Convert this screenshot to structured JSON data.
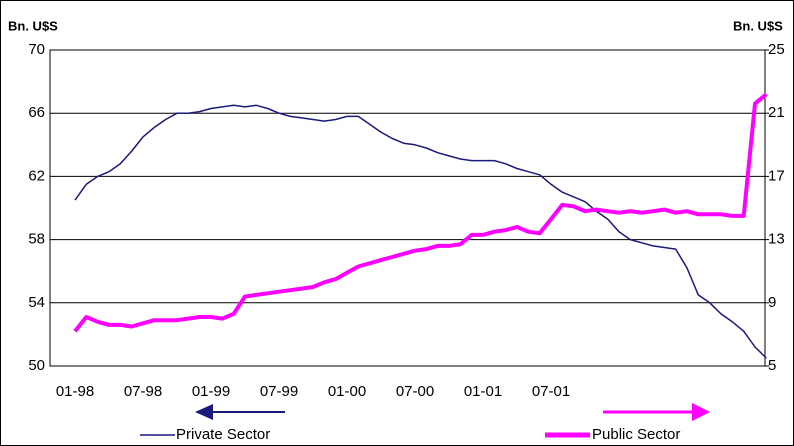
{
  "chart_data": {
    "type": "line",
    "y_label": "Bn. U$S",
    "y2_label": "Bn. U$S",
    "categories": [
      "01-98",
      null,
      null,
      null,
      null,
      null,
      "07-98",
      null,
      null,
      null,
      null,
      null,
      "01-99",
      null,
      null,
      null,
      null,
      null,
      "07-99",
      null,
      null,
      null,
      null,
      null,
      "01-00",
      null,
      null,
      null,
      null,
      null,
      "07-00",
      null,
      null,
      null,
      null,
      null,
      "01-01",
      null,
      null,
      null,
      null,
      null,
      "07-01",
      null,
      null,
      null,
      null,
      null,
      null,
      null,
      null,
      null,
      null,
      null,
      null,
      null,
      null,
      null,
      null,
      null,
      null,
      null
    ],
    "series": [
      {
        "name": "Private Sector",
        "color": "#1a1a7a",
        "axis": "y",
        "values": [
          60.5,
          61.5,
          62,
          62.3,
          62.8,
          63.6,
          64.5,
          65.1,
          65.6,
          66,
          66,
          66.1,
          66.3,
          66.4,
          66.5,
          66.4,
          66.5,
          66.3,
          66,
          65.8,
          65.7,
          65.6,
          65.5,
          65.6,
          65.8,
          65.8,
          65.3,
          64.8,
          64.4,
          64.1,
          64,
          63.8,
          63.5,
          63.3,
          63.1,
          63,
          63,
          63,
          62.8,
          62.5,
          62.3,
          62.1,
          61.5,
          61,
          60.7,
          60.4,
          59.8,
          59.3,
          58.5,
          58,
          57.8,
          57.6,
          57.5,
          57.4,
          56.2,
          54.5,
          54,
          53.3,
          52.8,
          52.2,
          51.2,
          50.5
        ]
      },
      {
        "name": "Public Sector",
        "color": "#ff00ff",
        "axis": "y2",
        "values": [
          7.2,
          8.1,
          7.8,
          7.6,
          7.6,
          7.5,
          7.7,
          7.9,
          7.9,
          7.9,
          8.0,
          8.1,
          8.1,
          8.0,
          8.3,
          9.4,
          9.5,
          9.6,
          9.7,
          9.8,
          9.9,
          10.0,
          10.3,
          10.5,
          10.9,
          11.3,
          11.5,
          11.7,
          11.9,
          12.1,
          12.3,
          12.4,
          12.6,
          12.6,
          12.7,
          13.3,
          13.3,
          13.5,
          13.6,
          13.8,
          13.5,
          13.4,
          14.3,
          15.2,
          15.1,
          14.8,
          14.9,
          14.8,
          14.7,
          14.8,
          14.7,
          14.8,
          14.9,
          14.7,
          14.8,
          14.6,
          14.6,
          14.6,
          14.5,
          14.5,
          21.6,
          22.2
        ]
      }
    ],
    "ylim": [
      50,
      70
    ],
    "yticks": [
      50,
      54,
      58,
      62,
      66,
      70
    ],
    "y2lim": [
      5,
      25
    ],
    "y2ticks": [
      5,
      9,
      13,
      17,
      21,
      25
    ],
    "grid": true,
    "legend": "bottom"
  }
}
